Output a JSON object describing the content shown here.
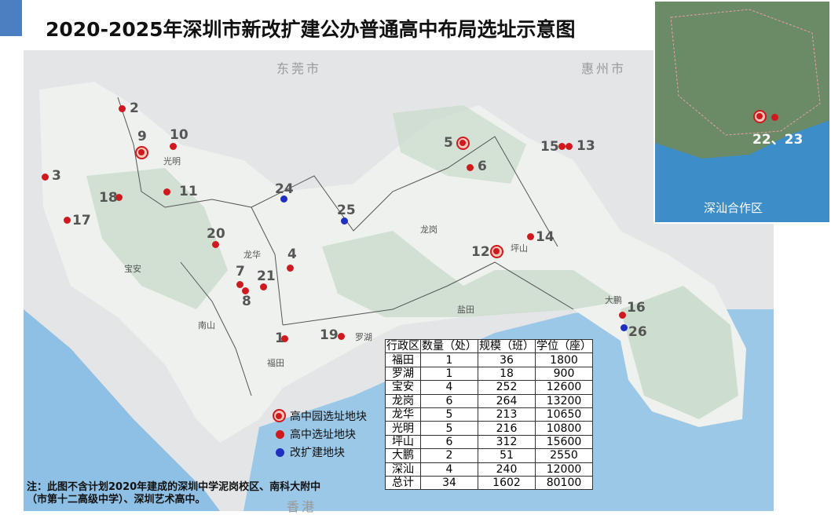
{
  "title": "2020-2025年深圳市新改扩建公办普通高中布局选址示意图",
  "map": {
    "cities": [
      "东莞市",
      "惠州市",
      "香港"
    ],
    "districts": [
      "光明",
      "宝安",
      "龙华",
      "南山",
      "福田",
      "罗湖",
      "龙岗",
      "坪山",
      "盐田",
      "大鹏"
    ],
    "markers": [
      {
        "id": "1",
        "type": "site"
      },
      {
        "id": "2",
        "type": "site"
      },
      {
        "id": "3",
        "type": "site"
      },
      {
        "id": "4",
        "type": "site"
      },
      {
        "id": "5",
        "type": "park"
      },
      {
        "id": "6",
        "type": "site"
      },
      {
        "id": "7",
        "type": "site"
      },
      {
        "id": "8",
        "type": "site"
      },
      {
        "id": "9",
        "type": "park"
      },
      {
        "id": "10",
        "type": "site"
      },
      {
        "id": "11",
        "type": "site"
      },
      {
        "id": "12",
        "type": "park"
      },
      {
        "id": "13",
        "type": "site"
      },
      {
        "id": "14",
        "type": "site"
      },
      {
        "id": "15",
        "type": "site"
      },
      {
        "id": "16",
        "type": "site"
      },
      {
        "id": "17",
        "type": "site"
      },
      {
        "id": "18",
        "type": "site"
      },
      {
        "id": "19",
        "type": "site"
      },
      {
        "id": "20",
        "type": "site"
      },
      {
        "id": "21",
        "type": "site"
      },
      {
        "id": "24",
        "type": "expand"
      },
      {
        "id": "25",
        "type": "expand"
      },
      {
        "id": "26",
        "type": "expand"
      }
    ],
    "colors": {
      "site": "#d0191f",
      "expand": "#1f2fbf",
      "sea": "#7fb6e0",
      "land": "#eef1ee",
      "green": "#c9dccb"
    }
  },
  "inset": {
    "label": "深汕合作区",
    "marker_label": "22、23"
  },
  "legend": [
    {
      "type": "park",
      "label": "高中园选址地块"
    },
    {
      "type": "site",
      "label": "高中选址地块"
    },
    {
      "type": "expand",
      "label": "改扩建地块"
    }
  ],
  "table": {
    "headers": [
      "行政区",
      "数量（处）",
      "规模（班）",
      "学位（座）"
    ],
    "rows": [
      [
        "福田",
        "1",
        "36",
        "1800"
      ],
      [
        "罗湖",
        "1",
        "18",
        "900"
      ],
      [
        "宝安",
        "4",
        "252",
        "12600"
      ],
      [
        "龙岗",
        "6",
        "264",
        "13200"
      ],
      [
        "龙华",
        "5",
        "213",
        "10650"
      ],
      [
        "光明",
        "5",
        "216",
        "10800"
      ],
      [
        "坪山",
        "6",
        "312",
        "15600"
      ],
      [
        "大鹏",
        "2",
        "51",
        "2550"
      ],
      [
        "深汕",
        "4",
        "240",
        "12000"
      ],
      [
        "总计",
        "34",
        "1602",
        "80100"
      ]
    ]
  },
  "note": "注：此图不含计划2020年建成的深圳中学泥岗校区、南科大附中（市第十二高级中学）、深圳艺术高中。"
}
